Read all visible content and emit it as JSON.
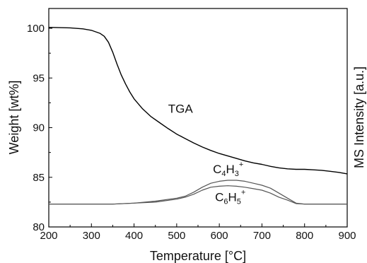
{
  "chart_data": {
    "type": "line",
    "xlabel": "Temperature [°C]",
    "ylabel_left": "Weight [wt%]",
    "ylabel_right": "MS Intensity [a.u.]",
    "xlim": [
      200,
      900
    ],
    "ylim": [
      80,
      102
    ],
    "xticks": [
      200,
      300,
      400,
      500,
      600,
      700,
      800,
      900
    ],
    "yticks": [
      80,
      85,
      90,
      95,
      100
    ],
    "grid": false,
    "legend": "none",
    "series": [
      {
        "name": "TGA",
        "color": "#000000",
        "x": [
          200,
          250,
          280,
          300,
          320,
          330,
          340,
          350,
          360,
          370,
          380,
          390,
          400,
          420,
          440,
          460,
          480,
          500,
          520,
          540,
          560,
          580,
          600,
          620,
          640,
          660,
          680,
          700,
          720,
          740,
          760,
          780,
          800,
          820,
          840,
          860,
          880,
          900
        ],
        "y": [
          100.1,
          100.05,
          99.95,
          99.8,
          99.5,
          99.2,
          98.6,
          97.6,
          96.4,
          95.3,
          94.4,
          93.6,
          92.9,
          91.9,
          91.1,
          90.5,
          89.9,
          89.35,
          88.9,
          88.45,
          88.05,
          87.7,
          87.4,
          87.15,
          86.9,
          86.65,
          86.45,
          86.3,
          86.1,
          85.95,
          85.85,
          85.8,
          85.8,
          85.75,
          85.7,
          85.6,
          85.5,
          85.35
        ]
      },
      {
        "name": "C4H3+",
        "color": "#555555",
        "x": [
          200,
          250,
          300,
          350,
          400,
          450,
          500,
          520,
          540,
          560,
          580,
          600,
          620,
          640,
          660,
          680,
          700,
          720,
          740,
          760,
          780,
          800,
          850,
          900
        ],
        "y": [
          82.3,
          82.3,
          82.3,
          82.3,
          82.4,
          82.6,
          82.9,
          83.1,
          83.5,
          84.0,
          84.4,
          84.6,
          84.7,
          84.7,
          84.6,
          84.4,
          84.2,
          83.9,
          83.4,
          82.9,
          82.4,
          82.3,
          82.3,
          82.3
        ]
      },
      {
        "name": "C6H5+",
        "color": "#555555",
        "x": [
          200,
          250,
          300,
          350,
          400,
          450,
          500,
          520,
          540,
          560,
          580,
          600,
          620,
          640,
          660,
          680,
          700,
          720,
          740,
          760,
          780,
          800,
          850,
          900
        ],
        "y": [
          82.3,
          82.3,
          82.3,
          82.3,
          82.4,
          82.5,
          82.8,
          83.0,
          83.3,
          83.7,
          84.0,
          84.1,
          84.15,
          84.1,
          84.0,
          83.85,
          83.7,
          83.4,
          83.0,
          82.7,
          82.35,
          82.3,
          82.3,
          82.3
        ]
      }
    ],
    "annotations": {
      "tga": {
        "text": "TGA",
        "at": [
          480,
          91.5
        ]
      },
      "c4h3": {
        "base1": "C",
        "sub1": "4",
        "base2": "H",
        "sub2": "3",
        "sup": "+",
        "at": [
          585,
          85.4
        ]
      },
      "c6h5": {
        "base1": "C",
        "sub1": "6",
        "base2": "H",
        "sub2": "5",
        "sup": "+",
        "at": [
          590,
          82.6
        ]
      }
    }
  }
}
